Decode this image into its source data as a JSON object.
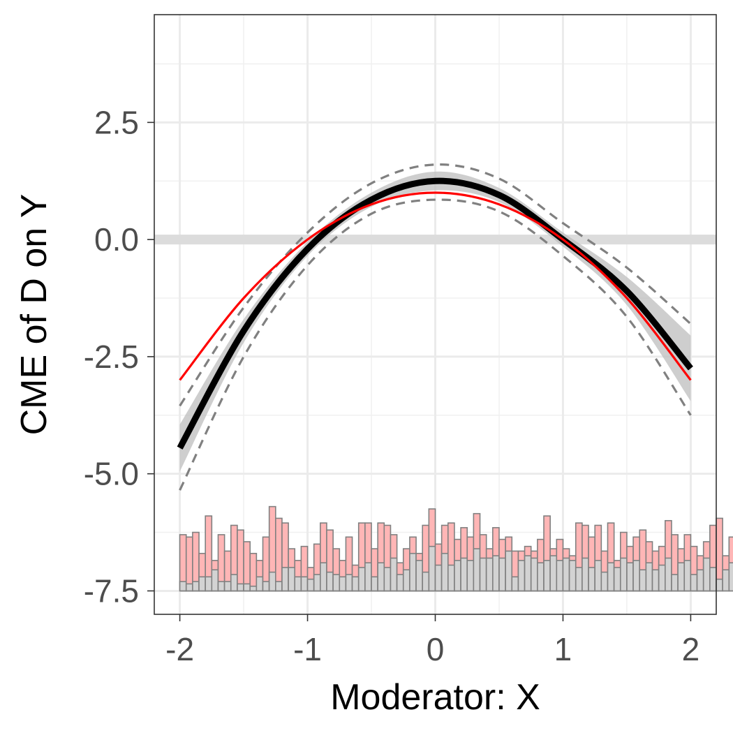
{
  "chart_data": {
    "type": "line",
    "title": "",
    "xlabel": "Moderator: X",
    "ylabel": "CME of D on Y",
    "xlim": [
      -2.2,
      2.2
    ],
    "ylim": [
      -8.0,
      4.8
    ],
    "x_ticks": [
      -2,
      -1,
      0,
      1,
      2
    ],
    "x_tick_labels": [
      "-2",
      "-1",
      "0",
      "1",
      "2"
    ],
    "y_ticks": [
      2.5,
      0.0,
      -2.5,
      -5.0,
      -7.5
    ],
    "y_tick_labels": [
      "2.5",
      "0.0",
      "-2.5",
      "-5.0",
      "-7.5"
    ],
    "grid": true,
    "zero_reference_line": 0,
    "series": [
      {
        "style": "thick-black",
        "color": "#000000",
        "x": [
          -2.0,
          -1.5,
          -1.0,
          -0.5,
          0.0,
          0.5,
          1.0,
          1.5,
          2.0
        ],
        "y": [
          -4.45,
          -1.95,
          -0.2,
          0.85,
          1.25,
          0.95,
          0.0,
          -1.1,
          -2.75
        ]
      },
      {
        "style": "confidence-band",
        "color": "#bdbdbd",
        "x": [
          -2.0,
          -1.5,
          -1.0,
          -0.5,
          0.0,
          0.5,
          1.0,
          1.5,
          2.0
        ],
        "lower": [
          -4.95,
          -2.2,
          -0.35,
          0.7,
          1.05,
          0.8,
          -0.15,
          -1.4,
          -3.45
        ],
        "upper": [
          -3.95,
          -1.7,
          -0.05,
          1.0,
          1.45,
          1.1,
          0.15,
          -0.8,
          -2.05
        ]
      },
      {
        "style": "dashed-grey-upper",
        "color": "#808080",
        "x": [
          -2.0,
          -1.5,
          -1.0,
          -0.5,
          0.0,
          0.5,
          1.0,
          1.5,
          2.0
        ],
        "y": [
          -3.55,
          -1.45,
          0.15,
          1.2,
          1.6,
          1.3,
          0.35,
          -0.6,
          -1.8
        ]
      },
      {
        "style": "dashed-grey-lower",
        "color": "#808080",
        "x": [
          -2.0,
          -1.5,
          -1.0,
          -0.5,
          0.0,
          0.5,
          1.0,
          1.5,
          2.0
        ],
        "y": [
          -5.35,
          -2.5,
          -0.55,
          0.55,
          0.85,
          0.6,
          -0.35,
          -1.65,
          -3.75
        ]
      },
      {
        "style": "thin-red",
        "color": "#ff0000",
        "x": [
          -2.0,
          -1.5,
          -1.0,
          -0.5,
          0.0,
          0.5,
          1.0,
          1.5,
          2.0
        ],
        "y": [
          -3.0,
          -1.25,
          0.0,
          0.75,
          1.0,
          0.75,
          0.0,
          -1.25,
          -3.0
        ]
      }
    ],
    "histogram": {
      "base": -7.5,
      "bin_width": 0.05,
      "x_start": -2.0,
      "fill_top": "#ffb6b6",
      "fill_bottom": "#d3d3d3",
      "stroke": "#808080",
      "total_tops": [
        -6.3,
        -6.35,
        -6.25,
        -6.7,
        -5.9,
        -6.85,
        -6.3,
        -6.65,
        -6.1,
        -6.2,
        -6.45,
        -6.7,
        -6.85,
        -6.35,
        -5.7,
        -5.95,
        -6.05,
        -6.6,
        -6.85,
        -6.55,
        -7.0,
        -6.5,
        -6.05,
        -6.2,
        -6.6,
        -6.85,
        -6.35,
        -6.95,
        -6.05,
        -6.05,
        -6.6,
        -6.05,
        -6.1,
        -6.3,
        -6.9,
        -6.6,
        -6.35,
        -6.7,
        -6.1,
        -5.75,
        -6.5,
        -6.1,
        -6.05,
        -6.4,
        -6.15,
        -6.35,
        -5.85,
        -6.3,
        -6.6,
        -6.15,
        -6.4,
        -6.35,
        -6.65,
        -6.65,
        -6.55,
        -6.65,
        -6.4,
        -5.9,
        -6.6,
        -6.4,
        -6.6,
        -6.75,
        -6.05,
        -6.1,
        -6.35,
        -6.1,
        -6.65,
        -6.05,
        -6.85,
        -6.25,
        -6.55,
        -6.35,
        -6.2,
        -6.45,
        -6.65,
        -6.55,
        -6.0,
        -6.3,
        -6.6,
        -6.3,
        -6.55,
        -6.75,
        -6.45,
        -6.1,
        -5.95,
        -6.75,
        -6.35,
        -5.85,
        -6.7,
        -6.1,
        -6.85,
        -6.15,
        -6.7,
        -6.35,
        -6.35,
        -6.65,
        -7.0,
        -6.0,
        -6.3,
        -6.45,
        -6.55
      ],
      "bottom_tops": [
        -7.3,
        -7.35,
        -7.3,
        -7.2,
        -7.2,
        -7.05,
        -7.3,
        -7.3,
        -7.15,
        -7.35,
        -7.35,
        -7.4,
        -7.2,
        -7.3,
        -7.1,
        -7.3,
        -7.0,
        -7.0,
        -7.2,
        -7.2,
        -7.25,
        -7.15,
        -6.9,
        -7.1,
        -7.15,
        -7.2,
        -7.15,
        -7.2,
        -7.0,
        -6.9,
        -7.2,
        -6.9,
        -7.0,
        -6.8,
        -7.15,
        -7.05,
        -6.7,
        -6.85,
        -7.1,
        -6.55,
        -6.95,
        -6.7,
        -6.95,
        -6.85,
        -6.8,
        -6.85,
        -6.6,
        -6.8,
        -6.8,
        -6.75,
        -6.8,
        -6.65,
        -7.2,
        -6.85,
        -6.75,
        -6.8,
        -6.9,
        -6.85,
        -6.75,
        -6.85,
        -6.8,
        -6.85,
        -7.0,
        -6.8,
        -7.0,
        -6.85,
        -7.1,
        -6.9,
        -7.0,
        -6.8,
        -6.9,
        -6.85,
        -7.05,
        -6.9,
        -7.05,
        -6.95,
        -6.8,
        -7.15,
        -6.9,
        -6.85,
        -7.15,
        -7.05,
        -6.8,
        -7.0,
        -7.25,
        -7.05,
        -6.9,
        -7.2,
        -7.15,
        -7.1,
        -7.25,
        -6.95,
        -7.15,
        -7.3,
        -7.2,
        -7.1,
        -7.35,
        -7.2,
        -7.25,
        -7.15,
        -7.25
      ]
    }
  }
}
